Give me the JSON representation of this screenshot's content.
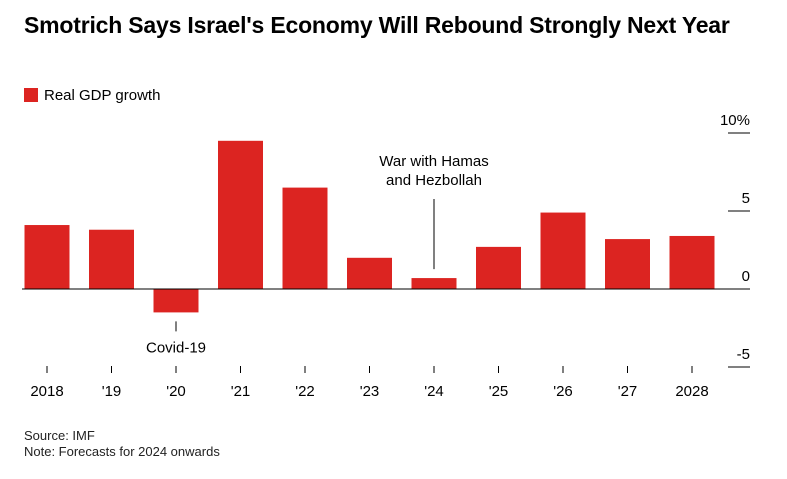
{
  "title": "Smotrich Says Israel's Economy Will Rebound Strongly Next Year",
  "legend": {
    "label": "Real GDP growth"
  },
  "colors": {
    "bar": "#dc2421",
    "axis": "#000000",
    "text": "#000000"
  },
  "chart_data": {
    "type": "bar",
    "categories": [
      "2018",
      "'19",
      "'20",
      "'21",
      "'22",
      "'23",
      "'24",
      "'25",
      "'26",
      "'27",
      "2028"
    ],
    "series": [
      {
        "name": "Real GDP growth",
        "values": [
          4.1,
          3.8,
          -1.5,
          9.5,
          6.5,
          2.0,
          0.7,
          2.7,
          4.9,
          3.2,
          3.4
        ]
      }
    ],
    "ylim": [
      -5,
      10
    ],
    "yticks": [
      {
        "value": 10,
        "label": "10%"
      },
      {
        "value": 5,
        "label": "5"
      },
      {
        "value": 0,
        "label": "0"
      },
      {
        "value": -5,
        "label": "-5"
      }
    ],
    "y_axis_position": "right",
    "annotations": [
      {
        "category_index": 2,
        "lines": [
          "Covid-19"
        ],
        "position": "below"
      },
      {
        "category_index": 6,
        "lines": [
          "War with Hamas",
          "and Hezbollah"
        ],
        "position": "above"
      }
    ],
    "xlabel": "",
    "ylabel": ""
  },
  "footer": {
    "source": "Source: IMF",
    "note": "Note: Forecasts for 2024 onwards"
  }
}
